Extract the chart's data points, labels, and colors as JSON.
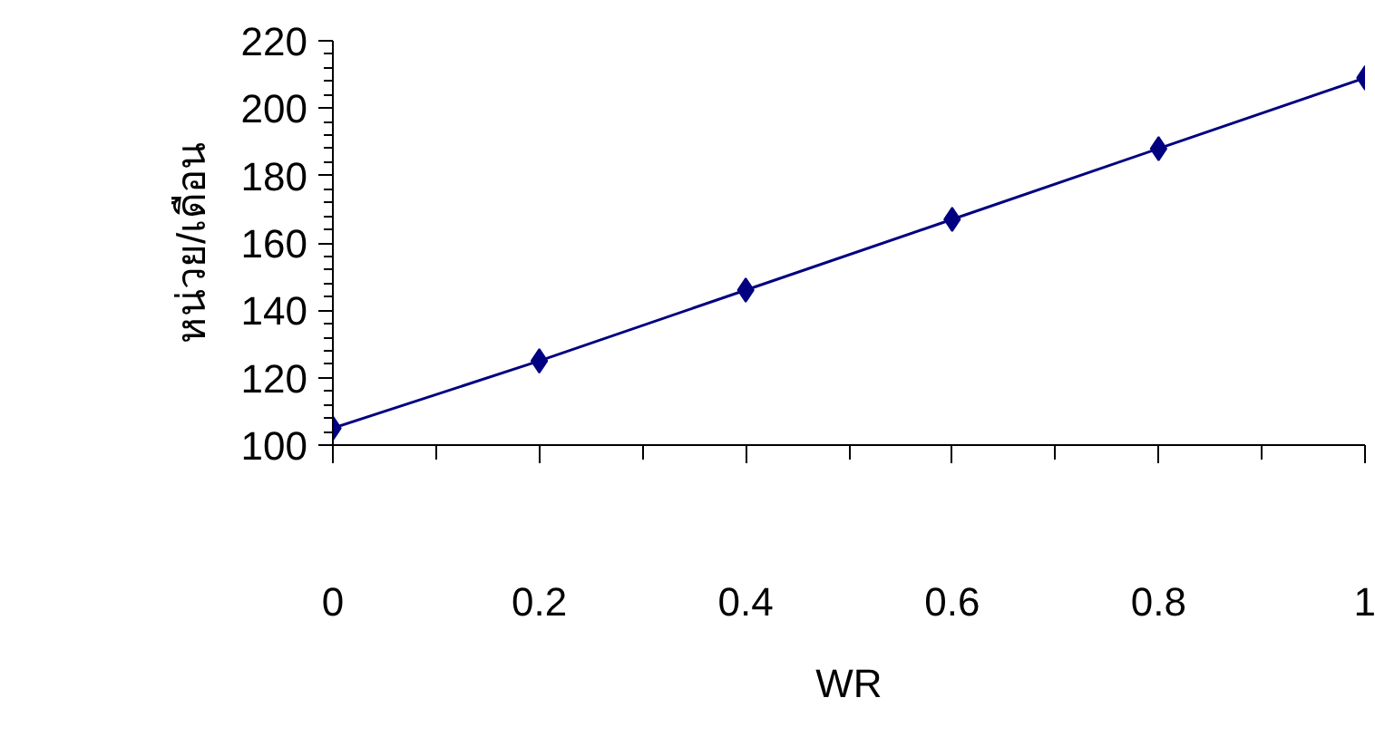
{
  "chart_data": {
    "type": "line",
    "xlabel": "WR",
    "ylabel": "หน่วย/เดือน",
    "x": [
      0,
      0.2,
      0.4,
      0.6,
      0.8,
      1
    ],
    "series": [
      {
        "color": "#000080",
        "values": [
          105,
          125,
          146,
          167,
          188,
          209
        ]
      }
    ],
    "xlim": [
      0,
      1
    ],
    "xticks": [
      0,
      0.2,
      0.4,
      0.6,
      0.8,
      1
    ],
    "ylim": [
      100,
      220
    ],
    "yticks": [
      100,
      120,
      140,
      160,
      180,
      200,
      220
    ],
    "grid": false,
    "marker": "diamond",
    "line_style": "solid"
  }
}
